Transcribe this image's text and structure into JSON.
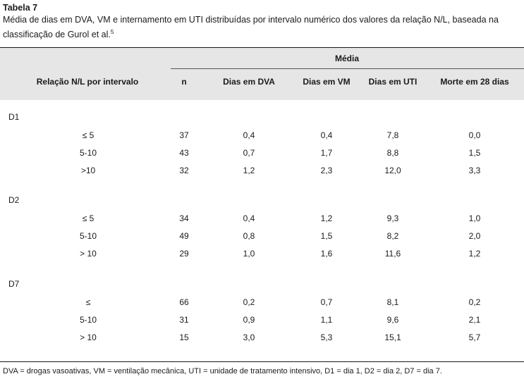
{
  "caption": {
    "label": "Tabela 7",
    "text": "Média de dias em DVA, VM e internamento em UTI distribuídas por intervalo numérico dos valores da relação N/L, baseada na classificação de Gurol et al.",
    "ref": "5"
  },
  "table": {
    "group_header": "Média",
    "columns": [
      "Relação N/L por intervalo",
      "n",
      "Dias em DVA",
      "Dias em VM",
      "Dias em UTI",
      "Morte em 28 dias"
    ],
    "groups": [
      {
        "name": "D1",
        "rows": [
          [
            "≤ 5",
            "37",
            "0,4",
            "0,4",
            "7,8",
            "0,0"
          ],
          [
            "5-10",
            "43",
            "0,7",
            "1,7",
            "8,8",
            "1,5"
          ],
          [
            ">10",
            "32",
            "1,2",
            "2,3",
            "12,0",
            "3,3"
          ]
        ]
      },
      {
        "name": "D2",
        "rows": [
          [
            "≤ 5",
            "34",
            "0,4",
            "1,2",
            "9,3",
            "1,0"
          ],
          [
            "5-10",
            "49",
            "0,8",
            "1,5",
            "8,2",
            "2,0"
          ],
          [
            "> 10",
            "29",
            "1,0",
            "1,6",
            "11,6",
            "1,2"
          ]
        ]
      },
      {
        "name": "D7",
        "rows": [
          [
            "≤",
            "66",
            "0,2",
            "0,7",
            "8,1",
            "0,2"
          ],
          [
            "5-10",
            "31",
            "0,9",
            "1,1",
            "9,6",
            "2,1"
          ],
          [
            "> 10",
            "15",
            "3,0",
            "5,3",
            "15,1",
            "5,7"
          ]
        ]
      }
    ]
  },
  "footnote": "DVA = drogas vasoativas, VM = ventilação mecânica, UTI = unidade de tratamento intensivo, D1 = dia 1, D2 = dia 2, D7 = dia 7."
}
